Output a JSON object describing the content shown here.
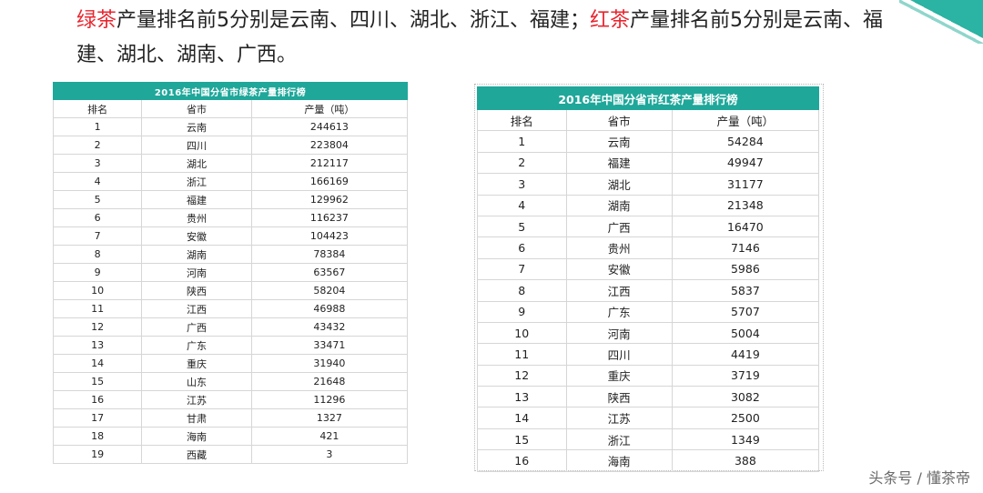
{
  "headline": {
    "part1": "绿茶",
    "part2": "产量排名前5分别是云南、四川、湖北、浙江、福建；",
    "part3": "红茶",
    "part4": "产量排名前5分别是云南、福建、湖北、湖南、广西。"
  },
  "green_table": {
    "title": "2016年中国分省市绿茶产量排行榜",
    "headers": [
      "排名",
      "省市",
      "产量（吨）"
    ],
    "rows": [
      [
        "1",
        "云南",
        "244613"
      ],
      [
        "2",
        "四川",
        "223804"
      ],
      [
        "3",
        "湖北",
        "212117"
      ],
      [
        "4",
        "浙江",
        "166169"
      ],
      [
        "5",
        "福建",
        "129962"
      ],
      [
        "6",
        "贵州",
        "116237"
      ],
      [
        "7",
        "安徽",
        "104423"
      ],
      [
        "8",
        "湖南",
        "78384"
      ],
      [
        "9",
        "河南",
        "63567"
      ],
      [
        "10",
        "陕西",
        "58204"
      ],
      [
        "11",
        "江西",
        "46988"
      ],
      [
        "12",
        "广西",
        "43432"
      ],
      [
        "13",
        "广东",
        "33471"
      ],
      [
        "14",
        "重庆",
        "31940"
      ],
      [
        "15",
        "山东",
        "21648"
      ],
      [
        "16",
        "江苏",
        "11296"
      ],
      [
        "17",
        "甘肃",
        "1327"
      ],
      [
        "18",
        "海南",
        "421"
      ],
      [
        "19",
        "西藏",
        "3"
      ]
    ]
  },
  "black_table": {
    "title": "2016年中国分省市红茶产量排行榜",
    "headers": [
      "排名",
      "省市",
      "产量（吨）"
    ],
    "rows": [
      [
        "1",
        "云南",
        "54284"
      ],
      [
        "2",
        "福建",
        "49947"
      ],
      [
        "3",
        "湖北",
        "31177"
      ],
      [
        "4",
        "湖南",
        "21348"
      ],
      [
        "5",
        "广西",
        "16470"
      ],
      [
        "6",
        "贵州",
        "7146"
      ],
      [
        "7",
        "安徽",
        "5986"
      ],
      [
        "8",
        "江西",
        "5837"
      ],
      [
        "9",
        "广东",
        "5707"
      ],
      [
        "10",
        "河南",
        "5004"
      ],
      [
        "11",
        "四川",
        "4419"
      ],
      [
        "12",
        "重庆",
        "3719"
      ],
      [
        "13",
        "陕西",
        "3082"
      ],
      [
        "14",
        "江苏",
        "2500"
      ],
      [
        "15",
        "浙江",
        "1349"
      ],
      [
        "16",
        "海南",
        "388"
      ]
    ]
  },
  "watermark": "头条号 / 懂茶帝",
  "colors": {
    "accent": "#1fa79a",
    "highlight": "#e8262f"
  }
}
